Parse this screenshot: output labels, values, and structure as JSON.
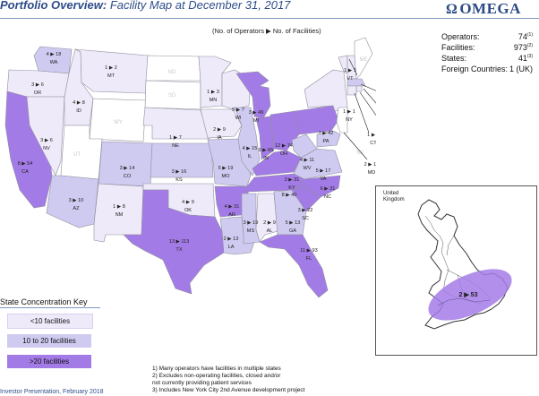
{
  "header": {
    "title_bold": "Portfolio Overview:",
    "title_rest": " Facility Map at December 31, 2017",
    "logo_text": "OMEGA",
    "logo_icon": "omega-glyph"
  },
  "map": {
    "subtitle": "(No. of Operators ▶ No. of Facilities)",
    "states": [
      {
        "abbr": "WA",
        "value": "4 ▶ 18",
        "tier": "mid"
      },
      {
        "abbr": "OR",
        "value": "3 ▶ 6",
        "tier": "low"
      },
      {
        "abbr": "CA",
        "value": "8 ▶ 54",
        "tier": "high"
      },
      {
        "abbr": "NV",
        "value": "3 ▶ 6",
        "tier": "low"
      },
      {
        "abbr": "ID",
        "value": "4 ▶ 8",
        "tier": "low"
      },
      {
        "abbr": "MT",
        "value": "1 ▶ 2",
        "tier": "low"
      },
      {
        "abbr": "WY",
        "value": "",
        "tier": "none"
      },
      {
        "abbr": "UT",
        "value": "",
        "tier": "none"
      },
      {
        "abbr": "AZ",
        "value": "3 ▶ 10",
        "tier": "mid"
      },
      {
        "abbr": "CO",
        "value": "3 ▶ 14",
        "tier": "mid"
      },
      {
        "abbr": "NM",
        "value": "1 ▶ 8",
        "tier": "low"
      },
      {
        "abbr": "ND",
        "value": "",
        "tier": "none"
      },
      {
        "abbr": "SD",
        "value": "",
        "tier": "none"
      },
      {
        "abbr": "NE",
        "value": "1 ▶ 7",
        "tier": "low"
      },
      {
        "abbr": "KS",
        "value": "3 ▶ 16",
        "tier": "mid"
      },
      {
        "abbr": "OK",
        "value": "4 ▶ 9",
        "tier": "low"
      },
      {
        "abbr": "TX",
        "value": "13 ▶ 113",
        "tier": "high"
      },
      {
        "abbr": "MN",
        "value": "1 ▶ 3",
        "tier": "low"
      },
      {
        "abbr": "IA",
        "value": "2 ▶ 9",
        "tier": "low"
      },
      {
        "abbr": "MO",
        "value": "5 ▶ 19",
        "tier": "mid"
      },
      {
        "abbr": "AR",
        "value": "4 ▶ 31",
        "tier": "high"
      },
      {
        "abbr": "LA",
        "value": "2 ▶ 13",
        "tier": "mid"
      },
      {
        "abbr": "WI",
        "value": "5 ▶ 7",
        "tier": "low"
      },
      {
        "abbr": "IL",
        "value": "4 ▶ 15",
        "tier": "mid"
      },
      {
        "abbr": "MI",
        "value": "3 ▶ 49",
        "tier": "high"
      },
      {
        "abbr": "IN",
        "value": "9 ▶ 65",
        "tier": "high"
      },
      {
        "abbr": "OH",
        "value": "12 ▶ 74",
        "tier": "high"
      },
      {
        "abbr": "KY",
        "value": "3 ▶ 31",
        "tier": "high"
      },
      {
        "abbr": "TN",
        "value": "8 ▶ 40",
        "tier": "high"
      },
      {
        "abbr": "MS",
        "value": "3 ▶ 19",
        "tier": "mid"
      },
      {
        "abbr": "AL",
        "value": "2 ▶ 9",
        "tier": "low"
      },
      {
        "abbr": "GA",
        "value": "5 ▶ 13",
        "tier": "mid"
      },
      {
        "abbr": "FL",
        "value": "11 ▶ 93",
        "tier": "high"
      },
      {
        "abbr": "SC",
        "value": "3 ▶ 22",
        "tier": "high"
      },
      {
        "abbr": "NC",
        "value": "6 ▶ 31",
        "tier": "high"
      },
      {
        "abbr": "VA",
        "value": "5 ▶ 17",
        "tier": "mid"
      },
      {
        "abbr": "WV",
        "value": "4 ▶ 11",
        "tier": "mid"
      },
      {
        "abbr": "PA",
        "value": "7 ▶ 42",
        "tier": "high"
      },
      {
        "abbr": "NY",
        "value": "1 ▶ 1",
        "tier": "low"
      },
      {
        "abbr": "VT",
        "value": "1 ▶ 1",
        "tier": "low"
      },
      {
        "abbr": "NH",
        "value": "1 ▶ 3",
        "tier": "low"
      },
      {
        "abbr": "ME",
        "value": "",
        "tier": "none"
      },
      {
        "abbr": "MA",
        "value": "2 ▶ 10",
        "tier": "mid"
      },
      {
        "abbr": "RI",
        "value": "1 ▶ 4",
        "tier": "low"
      },
      {
        "abbr": "CT",
        "value": "1 ▶ 6",
        "tier": "low"
      },
      {
        "abbr": "NJ",
        "value": "",
        "tier": "none"
      },
      {
        "abbr": "MD",
        "value": "2 ▶ 12",
        "tier": "mid"
      }
    ]
  },
  "stats": [
    {
      "label": "Operators:",
      "value": "74",
      "note": "(1)"
    },
    {
      "label": "Facilities:",
      "value": "973",
      "note": "(2)"
    },
    {
      "label": "States:",
      "value": "41",
      "note": "(3)"
    },
    {
      "label": "Foreign Countries:",
      "value": "1 (UK)",
      "note": ""
    }
  ],
  "uk": {
    "label_line1": "United",
    "label_line2": "Kingdom",
    "value": "2 ▶ 53",
    "tier": "high"
  },
  "key": {
    "title": "State Concentration Key",
    "items": [
      {
        "label": "<10 facilities",
        "color": "#efeafa"
      },
      {
        "label": "10 to 20 facilities",
        "color": "#cfcaf0"
      },
      {
        "label": ">20 facilities",
        "color": "#a37be6"
      }
    ]
  },
  "colors": {
    "none": "#ffffff",
    "low": "#efeafa",
    "mid": "#cfcaf0",
    "high": "#a37be6",
    "border": "#8f8f9f",
    "accent": "#2f4d8a"
  },
  "notes": [
    "1)  Many operators have facilities in multiple states",
    "2)  Excludes non-operating facilities, closed and/or",
    "      not currently providing patient services",
    "3)  Includes New York City 2nd Avenue development project"
  ],
  "footer": {
    "text": "Investor Presentation, February 2018"
  }
}
